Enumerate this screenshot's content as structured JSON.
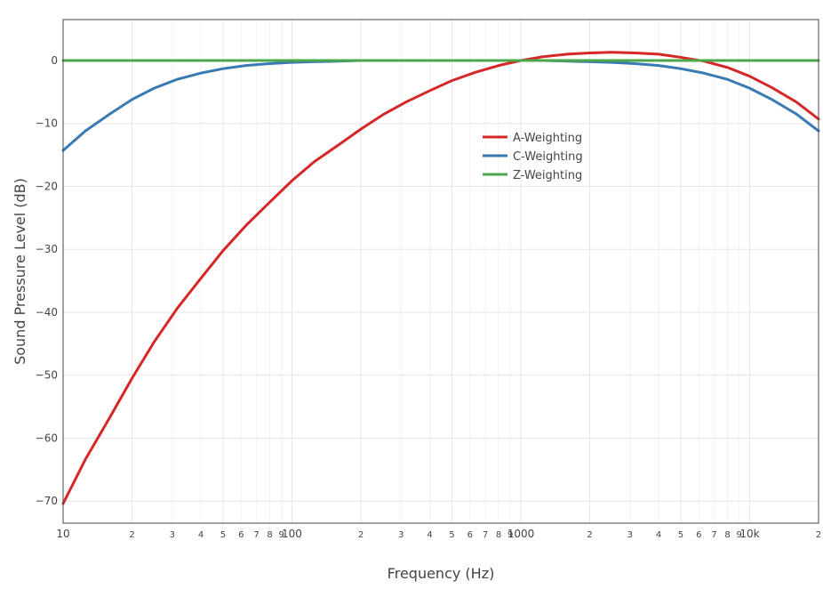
{
  "chart_data": {
    "type": "line",
    "xlabel": "Frequency (Hz)",
    "ylabel": "Sound Pressure Level (dB)",
    "xscale": "log",
    "xlim": [
      10,
      20000
    ],
    "ylim": [
      -73.5,
      6.5
    ],
    "yticks": [
      0,
      -10,
      -20,
      -30,
      -40,
      -50,
      -60,
      -70
    ],
    "ytick_labels": [
      "0",
      "−10",
      "−20",
      "−30",
      "−40",
      "−50",
      "−60",
      "−70"
    ],
    "xtick_labels": [
      {
        "value": 10,
        "label": "10",
        "major": true
      },
      {
        "value": 20,
        "label": "2",
        "major": false
      },
      {
        "value": 30,
        "label": "3",
        "major": false
      },
      {
        "value": 40,
        "label": "4",
        "major": false
      },
      {
        "value": 50,
        "label": "5",
        "major": false
      },
      {
        "value": 60,
        "label": "6",
        "major": false
      },
      {
        "value": 70,
        "label": "7",
        "major": false
      },
      {
        "value": 80,
        "label": "8",
        "major": false
      },
      {
        "value": 90,
        "label": "9",
        "major": false
      },
      {
        "value": 100,
        "label": "100",
        "major": true
      },
      {
        "value": 200,
        "label": "2",
        "major": false
      },
      {
        "value": 300,
        "label": "3",
        "major": false
      },
      {
        "value": 400,
        "label": "4",
        "major": false
      },
      {
        "value": 500,
        "label": "5",
        "major": false
      },
      {
        "value": 600,
        "label": "6",
        "major": false
      },
      {
        "value": 700,
        "label": "7",
        "major": false
      },
      {
        "value": 800,
        "label": "8",
        "major": false
      },
      {
        "value": 900,
        "label": "9",
        "major": false
      },
      {
        "value": 1000,
        "label": "1000",
        "major": true
      },
      {
        "value": 2000,
        "label": "2",
        "major": false
      },
      {
        "value": 3000,
        "label": "3",
        "major": false
      },
      {
        "value": 4000,
        "label": "4",
        "major": false
      },
      {
        "value": 5000,
        "label": "5",
        "major": false
      },
      {
        "value": 6000,
        "label": "6",
        "major": false
      },
      {
        "value": 7000,
        "label": "7",
        "major": false
      },
      {
        "value": 8000,
        "label": "8",
        "major": false
      },
      {
        "value": 9000,
        "label": "9",
        "major": false
      },
      {
        "value": 10000,
        "label": "10k",
        "major": true
      },
      {
        "value": 20000,
        "label": "2",
        "major": false
      }
    ],
    "grid": true,
    "legend_position": "center",
    "series": [
      {
        "name": "A-Weighting",
        "color": "#d62728",
        "x": [
          10,
          12.5,
          16,
          20,
          25,
          31.5,
          40,
          50,
          63,
          80,
          100,
          125,
          160,
          200,
          250,
          315,
          400,
          500,
          630,
          800,
          1000,
          1250,
          1600,
          2000,
          2500,
          3150,
          4000,
          5000,
          6300,
          8000,
          10000,
          12500,
          16000,
          20000
        ],
        "y": [
          -70.4,
          -63.4,
          -56.7,
          -50.5,
          -44.7,
          -39.4,
          -34.6,
          -30.2,
          -26.2,
          -22.5,
          -19.1,
          -16.1,
          -13.4,
          -10.9,
          -8.6,
          -6.6,
          -4.8,
          -3.2,
          -1.9,
          -0.8,
          0.0,
          0.6,
          1.0,
          1.2,
          1.3,
          1.2,
          1.0,
          0.5,
          -0.1,
          -1.1,
          -2.5,
          -4.3,
          -6.6,
          -9.3
        ]
      },
      {
        "name": "C-Weighting",
        "color": "#3a7ab3",
        "x": [
          10,
          12.5,
          16,
          20,
          25,
          31.5,
          40,
          50,
          63,
          80,
          100,
          125,
          160,
          200,
          250,
          315,
          400,
          500,
          630,
          800,
          1000,
          1250,
          1600,
          2000,
          2500,
          3150,
          4000,
          5000,
          6300,
          8000,
          10000,
          12500,
          16000,
          20000
        ],
        "y": [
          -14.3,
          -11.2,
          -8.5,
          -6.2,
          -4.4,
          -3.0,
          -2.0,
          -1.3,
          -0.8,
          -0.5,
          -0.3,
          -0.2,
          -0.1,
          0.0,
          0.0,
          0.0,
          0.0,
          0.0,
          0.0,
          0.0,
          0.0,
          0.0,
          -0.1,
          -0.2,
          -0.3,
          -0.5,
          -0.8,
          -1.3,
          -2.0,
          -3.0,
          -4.4,
          -6.2,
          -8.5,
          -11.2
        ]
      },
      {
        "name": "Z-Weighting",
        "color": "#4aa84a",
        "x": [
          10,
          20000
        ],
        "y": [
          0,
          0
        ]
      }
    ]
  }
}
